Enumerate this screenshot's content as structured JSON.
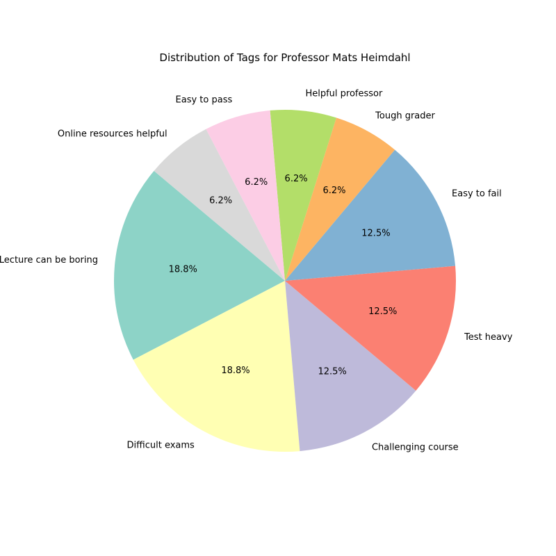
{
  "chart_data": {
    "type": "pie",
    "title": "Distribution of Tags for Professor Mats Heimdahl",
    "start_angle_deg": 140,
    "direction": "counterclockwise",
    "slices": [
      {
        "label": "Lecture can be boring",
        "value": 18.75,
        "pct_label": "18.8%",
        "color": "#8dd3c7"
      },
      {
        "label": "Difficult exams",
        "value": 18.75,
        "pct_label": "18.8%",
        "color": "#ffffb3"
      },
      {
        "label": "Challenging course",
        "value": 12.5,
        "pct_label": "12.5%",
        "color": "#bebada"
      },
      {
        "label": "Test heavy",
        "value": 12.5,
        "pct_label": "12.5%",
        "color": "#fb8072"
      },
      {
        "label": "Easy to fail",
        "value": 12.5,
        "pct_label": "12.5%",
        "color": "#80b1d3"
      },
      {
        "label": "Tough grader",
        "value": 6.25,
        "pct_label": "6.2%",
        "color": "#fdb462"
      },
      {
        "label": "Helpful professor",
        "value": 6.25,
        "pct_label": "6.2%",
        "color": "#b3de69"
      },
      {
        "label": "Easy to pass",
        "value": 6.25,
        "pct_label": "6.2%",
        "color": "#fccde5"
      },
      {
        "label": "Online resources helpful",
        "value": 6.25,
        "pct_label": "6.2%",
        "color": "#d9d9d9"
      }
    ]
  }
}
